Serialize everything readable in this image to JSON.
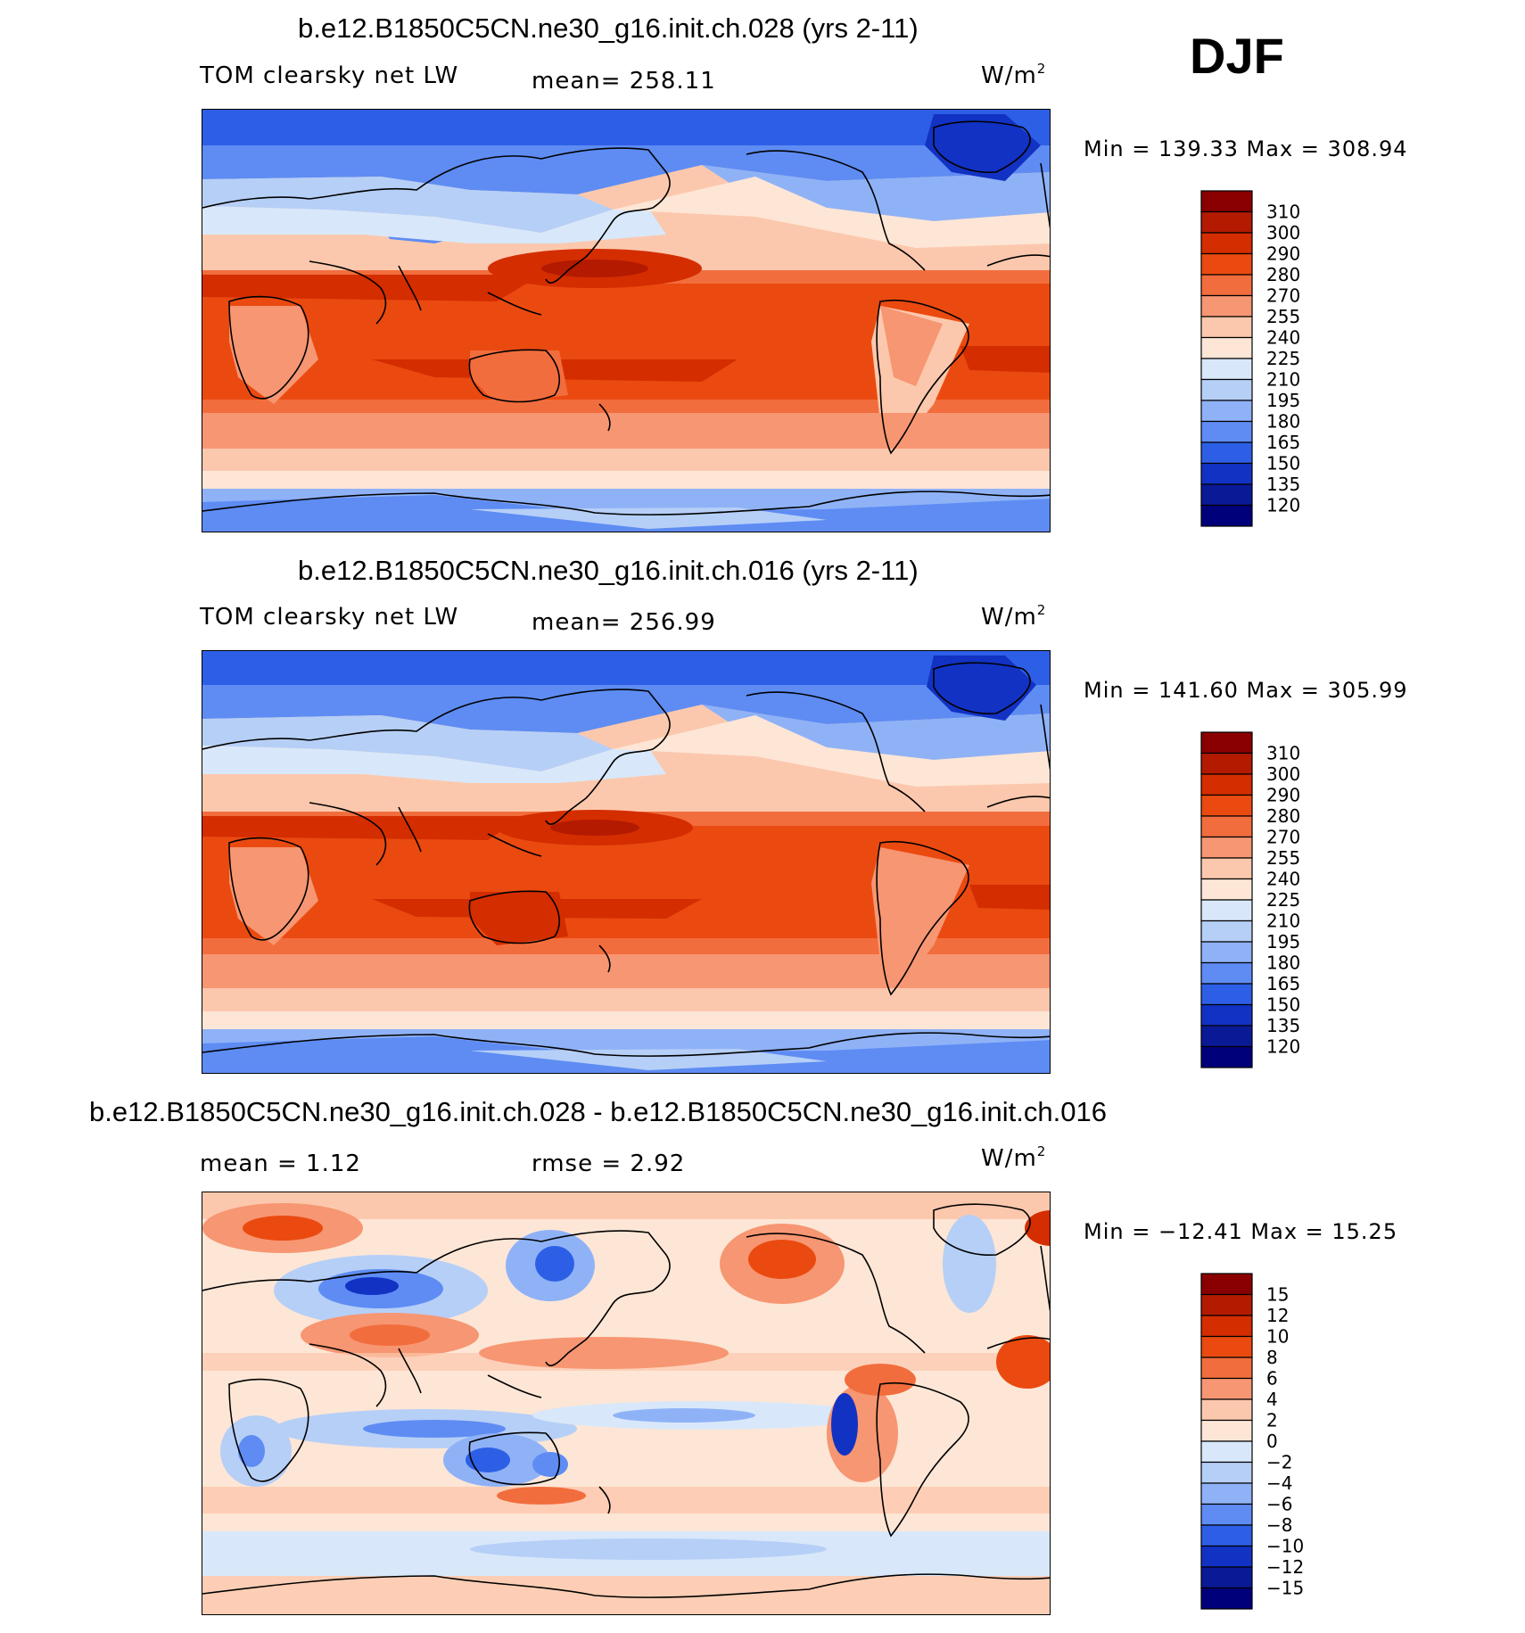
{
  "season": "DJF",
  "panels": [
    {
      "id": "top",
      "title": "b.e12.B1850C5CN.ne30_g16.init.ch.028 (yrs 2-11)",
      "variable": "TOM clearsky net LW",
      "stat_text": "mean= 258.11",
      "units": "W/m",
      "units_exp": "2",
      "minmax_text": "Min = 139.33 Max = 308.94",
      "chart_data": {
        "type": "contour-map",
        "mean": 258.11,
        "min": 139.33,
        "max": 308.94,
        "colorbar": {
          "levels": [
            "310",
            "300",
            "290",
            "280",
            "270",
            "255",
            "240",
            "225",
            "210",
            "195",
            "180",
            "165",
            "150",
            "135",
            "120"
          ],
          "colors": [
            "#8a0000",
            "#b31a00",
            "#d42d00",
            "#ea4a10",
            "#f26d3d",
            "#f79672",
            "#fcc8ad",
            "#fde6d6",
            "#d8e8fa",
            "#b6cff7",
            "#8fb2f7",
            "#5e8cf3",
            "#2d5fe6",
            "#1232c4",
            "#0a1a96",
            "#00007a"
          ]
        }
      }
    },
    {
      "id": "middle",
      "title": "b.e12.B1850C5CN.ne30_g16.init.ch.016 (yrs 2-11)",
      "variable": "TOM clearsky net LW",
      "stat_text": "mean= 256.99",
      "units": "W/m",
      "units_exp": "2",
      "minmax_text": "Min = 141.60 Max = 305.99",
      "chart_data": {
        "type": "contour-map",
        "mean": 256.99,
        "min": 141.6,
        "max": 305.99,
        "colorbar": {
          "levels": [
            "310",
            "300",
            "290",
            "280",
            "270",
            "255",
            "240",
            "225",
            "210",
            "195",
            "180",
            "165",
            "150",
            "135",
            "120"
          ],
          "colors": [
            "#8a0000",
            "#b31a00",
            "#d42d00",
            "#ea4a10",
            "#f26d3d",
            "#f79672",
            "#fcc8ad",
            "#fde6d6",
            "#d8e8fa",
            "#b6cff7",
            "#8fb2f7",
            "#5e8cf3",
            "#2d5fe6",
            "#1232c4",
            "#0a1a96",
            "#00007a"
          ]
        }
      }
    },
    {
      "id": "diff",
      "title": "b.e12.B1850C5CN.ne30_g16.init.ch.028 - b.e12.B1850C5CN.ne30_g16.init.ch.016",
      "mean_text": "mean =    1.12",
      "rmse_text": "rmse =    2.92",
      "units": "W/m",
      "units_exp": "2",
      "minmax_text": "Min = −12.41 Max =   15.25",
      "chart_data": {
        "type": "contour-map",
        "mean": 1.12,
        "rmse": 2.92,
        "min": -12.41,
        "max": 15.25,
        "colorbar": {
          "levels": [
            "15",
            "12",
            "10",
            "8",
            "6",
            "4",
            "2",
            "0",
            "−2",
            "−4",
            "−6",
            "−8",
            "−10",
            "−12",
            "−15"
          ],
          "colors": [
            "#8a0000",
            "#b31a00",
            "#d42d00",
            "#ea4a10",
            "#f26d3d",
            "#f79672",
            "#fcc8ad",
            "#fde6d6",
            "#d8e8fa",
            "#b6cff7",
            "#8fb2f7",
            "#5e8cf3",
            "#2d5fe6",
            "#1232c4",
            "#0a1a96",
            "#00007a"
          ]
        }
      }
    }
  ]
}
